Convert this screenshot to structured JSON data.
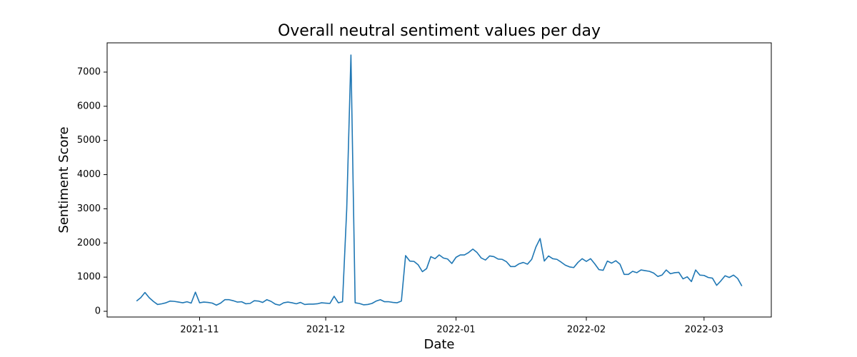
{
  "chart_data": {
    "type": "line",
    "title": "Overall neutral sentiment values per day",
    "x_label": "Date",
    "y_label": "Sentiment Score",
    "x": [
      "2021-10-17",
      "2021-10-18",
      "2021-10-19",
      "2021-10-20",
      "2021-10-21",
      "2021-10-22",
      "2021-10-23",
      "2021-10-24",
      "2021-10-25",
      "2021-10-26",
      "2021-10-27",
      "2021-10-28",
      "2021-10-29",
      "2021-10-30",
      "2021-10-31",
      "2021-11-01",
      "2021-11-02",
      "2021-11-03",
      "2021-11-04",
      "2021-11-05",
      "2021-11-06",
      "2021-11-07",
      "2021-11-08",
      "2021-11-09",
      "2021-11-10",
      "2021-11-11",
      "2021-11-12",
      "2021-11-13",
      "2021-11-14",
      "2021-11-15",
      "2021-11-16",
      "2021-11-17",
      "2021-11-18",
      "2021-11-19",
      "2021-11-20",
      "2021-11-21",
      "2021-11-22",
      "2021-11-23",
      "2021-11-24",
      "2021-11-25",
      "2021-11-26",
      "2021-11-27",
      "2021-11-28",
      "2021-11-29",
      "2021-11-30",
      "2021-12-01",
      "2021-12-02",
      "2021-12-03",
      "2021-12-04",
      "2021-12-05",
      "2021-12-06",
      "2021-12-07",
      "2021-12-08",
      "2021-12-09",
      "2021-12-10",
      "2021-12-11",
      "2021-12-12",
      "2021-12-13",
      "2021-12-14",
      "2021-12-15",
      "2021-12-16",
      "2021-12-17",
      "2021-12-18",
      "2021-12-19",
      "2021-12-20",
      "2021-12-21",
      "2021-12-22",
      "2021-12-23",
      "2021-12-24",
      "2021-12-25",
      "2021-12-26",
      "2021-12-27",
      "2021-12-28",
      "2021-12-29",
      "2021-12-30",
      "2021-12-31",
      "2022-01-01",
      "2022-01-02",
      "2022-01-03",
      "2022-01-04",
      "2022-01-05",
      "2022-01-06",
      "2022-01-07",
      "2022-01-08",
      "2022-01-09",
      "2022-01-10",
      "2022-01-11",
      "2022-01-12",
      "2022-01-13",
      "2022-01-14",
      "2022-01-15",
      "2022-01-16",
      "2022-01-17",
      "2022-01-18",
      "2022-01-19",
      "2022-01-20",
      "2022-01-21",
      "2022-01-22",
      "2022-01-23",
      "2022-01-24",
      "2022-01-25",
      "2022-01-26",
      "2022-01-27",
      "2022-01-28",
      "2022-01-29",
      "2022-01-30",
      "2022-01-31",
      "2022-02-01",
      "2022-02-02",
      "2022-02-03",
      "2022-02-04",
      "2022-02-05",
      "2022-02-06",
      "2022-02-07",
      "2022-02-08",
      "2022-02-09",
      "2022-02-10",
      "2022-02-11",
      "2022-02-12",
      "2022-02-13",
      "2022-02-14",
      "2022-02-15",
      "2022-02-16",
      "2022-02-17",
      "2022-02-18",
      "2022-02-19",
      "2022-02-20",
      "2022-02-21",
      "2022-02-22",
      "2022-02-23",
      "2022-02-24",
      "2022-02-25",
      "2022-02-26",
      "2022-02-27",
      "2022-02-28",
      "2022-03-01",
      "2022-03-02",
      "2022-03-03",
      "2022-03-04",
      "2022-03-05",
      "2022-03-06",
      "2022-03-07",
      "2022-03-08",
      "2022-03-09",
      "2022-03-10"
    ],
    "values": [
      300,
      400,
      550,
      400,
      290,
      200,
      220,
      250,
      300,
      290,
      270,
      250,
      280,
      240,
      560,
      250,
      270,
      260,
      240,
      180,
      240,
      340,
      340,
      310,
      270,
      280,
      220,
      230,
      310,
      300,
      260,
      340,
      290,
      210,
      180,
      250,
      270,
      250,
      220,
      260,
      200,
      210,
      210,
      220,
      250,
      240,
      230,
      440,
      250,
      280,
      3000,
      7500,
      250,
      230,
      190,
      200,
      230,
      300,
      340,
      280,
      280,
      260,
      250,
      300,
      1630,
      1470,
      1460,
      1360,
      1160,
      1250,
      1600,
      1540,
      1650,
      1560,
      1530,
      1400,
      1580,
      1650,
      1650,
      1720,
      1820,
      1720,
      1560,
      1500,
      1620,
      1600,
      1530,
      1520,
      1450,
      1310,
      1310,
      1390,
      1430,
      1380,
      1520,
      1880,
      2130,
      1470,
      1620,
      1540,
      1520,
      1440,
      1350,
      1300,
      1280,
      1430,
      1540,
      1460,
      1540,
      1390,
      1220,
      1200,
      1470,
      1410,
      1480,
      1380,
      1080,
      1080,
      1170,
      1130,
      1210,
      1190,
      1170,
      1120,
      1020,
      1060,
      1210,
      1100,
      1130,
      1140,
      950,
      1010,
      870,
      1210,
      1060,
      1050,
      990,
      970,
      760,
      890,
      1040,
      990,
      1060,
      960,
      740
    ],
    "color": "#1f77b4",
    "xlim": [
      "2021-10-10",
      "2022-03-17"
    ],
    "xticks": [
      "2021-11",
      "2021-12",
      "2022-01",
      "2022-02",
      "2022-03"
    ],
    "ylim": [
      -167,
      7856
    ],
    "yticks": [
      0,
      1000,
      2000,
      3000,
      4000,
      5000,
      6000,
      7000
    ]
  }
}
